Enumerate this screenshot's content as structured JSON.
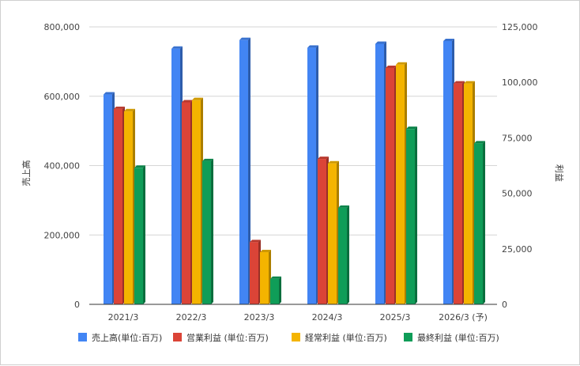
{
  "chart_data": {
    "type": "bar",
    "categories": [
      "2021/3",
      "2022/3",
      "2023/3",
      "2024/3",
      "2025/3",
      "2026/3 (予)"
    ],
    "series": [
      {
        "name": "売上高(単位:百万)",
        "axis": "left",
        "color": "#4285f4",
        "values": [
          605000,
          737000,
          762000,
          740000,
          751000,
          759000
        ]
      },
      {
        "name": "営業利益 (単位:百万)",
        "axis": "right",
        "color": "#db4437",
        "values": [
          88000,
          91000,
          28000,
          65500,
          106500,
          99500
        ]
      },
      {
        "name": "経常利益 (単位:百万)",
        "axis": "right",
        "color": "#f4b400",
        "values": [
          87000,
          92000,
          23500,
          63500,
          108000,
          99500
        ]
      },
      {
        "name": "最終利益 (単位:百万)",
        "axis": "right",
        "color": "#0f9d58",
        "values": [
          61500,
          64500,
          11500,
          43500,
          79000,
          72500
        ]
      }
    ],
    "ylabel": "売上高",
    "y2label": "利益",
    "ylim": [
      0,
      800000
    ],
    "y2lim": [
      0,
      125000
    ],
    "yticks": [
      "0",
      "200,000",
      "400,000",
      "600,000",
      "800,000"
    ],
    "y2ticks": [
      "0",
      "25,000",
      "50,000",
      "75,000",
      "100,000",
      "125,000"
    ],
    "grid": true,
    "legend": "bottom"
  }
}
